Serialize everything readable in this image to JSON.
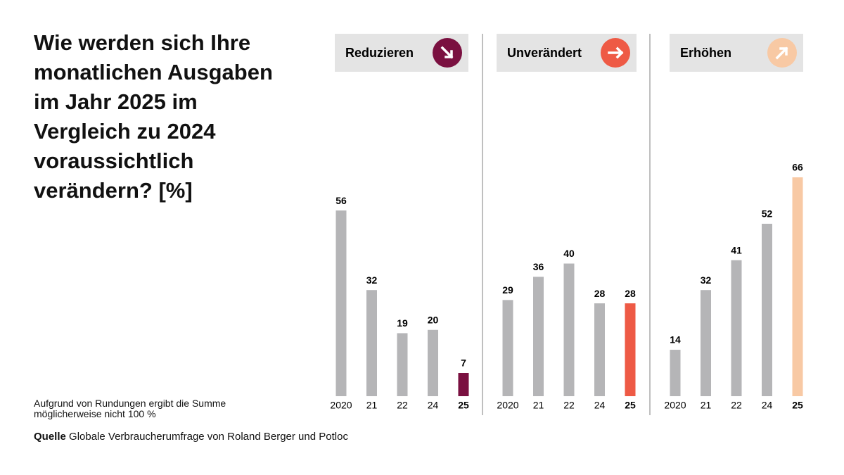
{
  "title": "Wie werden sich Ihre monatlichen Ausgaben im Jahr 2025 im Vergleich zu 2024 voraussichtlich verändern? [%]",
  "note": "Aufgrund von Rundungen ergibt die Summe möglicherweise nicht 100 %",
  "source": {
    "label": "Quelle",
    "text": "Globale Verbraucherumfrage von Roland Berger und Potloc"
  },
  "chart_data": [
    {
      "type": "bar",
      "title": "Reduzieren",
      "categories": [
        "2020",
        "21",
        "22",
        "24",
        "25"
      ],
      "values": [
        56,
        32,
        19,
        20,
        7
      ],
      "colors": [
        "#b5b5b7",
        "#b5b5b7",
        "#b5b5b7",
        "#b5b5b7",
        "#7a1040"
      ]
    },
    {
      "type": "bar",
      "title": "Unverändert",
      "categories": [
        "2020",
        "21",
        "22",
        "24",
        "25"
      ],
      "values": [
        29,
        36,
        40,
        28,
        28
      ],
      "colors": [
        "#b5b5b7",
        "#b5b5b7",
        "#b5b5b7",
        "#b5b5b7",
        "#ee5a45"
      ]
    },
    {
      "type": "bar",
      "title": "Erhöhen",
      "categories": [
        "2020",
        "21",
        "22",
        "24",
        "25"
      ],
      "values": [
        14,
        32,
        41,
        52,
        66
      ],
      "colors": [
        "#b5b5b7",
        "#b5b5b7",
        "#b5b5b7",
        "#b5b5b7",
        "#f8c9a4"
      ]
    }
  ]
}
